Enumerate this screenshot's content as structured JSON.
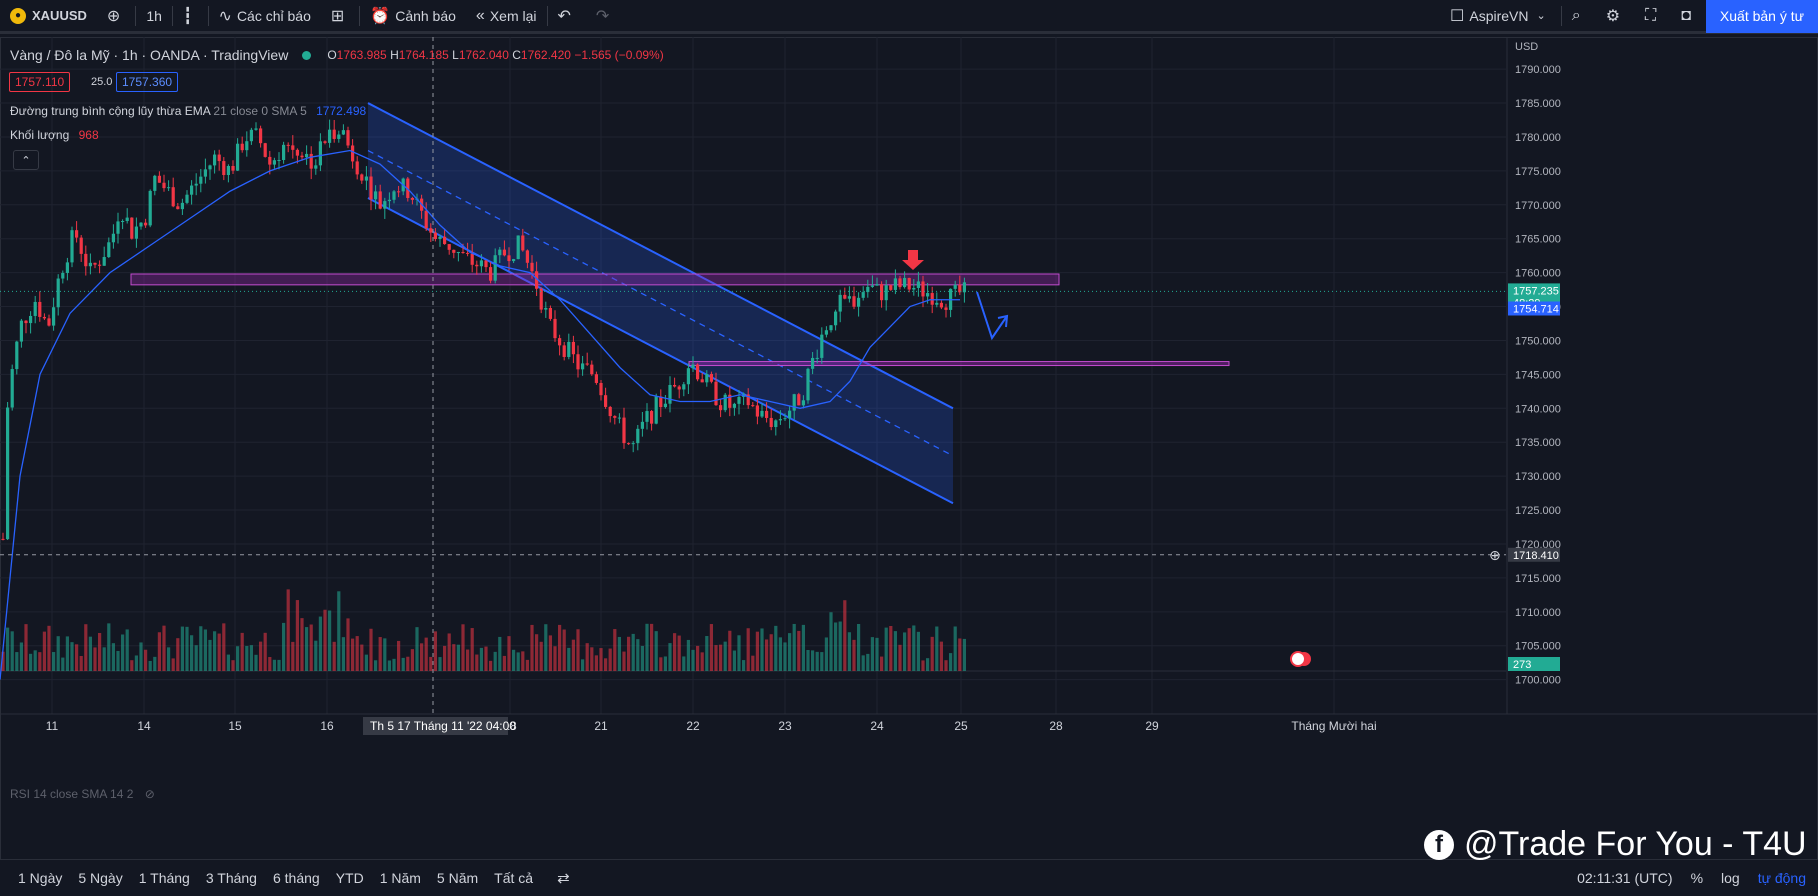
{
  "toolbar": {
    "symbol": "XAUUSD",
    "interval": "1h",
    "indicators_label": "Các chỉ báo",
    "alert_label": "Cảnh báo",
    "replay_label": "Xem lại",
    "layout_name": "AspireVN",
    "publish_label": "Xuất bản ý tư"
  },
  "legend": {
    "title": "Vàng / Đô la Mỹ · 1h · OANDA · TradingView",
    "o_label": "O",
    "o": "1763.985",
    "h_label": "H",
    "h": "1764.185",
    "l_label": "L",
    "l": "1762.040",
    "c_label": "C",
    "c": "1762.420",
    "change": "−1.565 (−0.09%)",
    "bid": "1757.110",
    "spread": "25.0",
    "ask": "1757.360"
  },
  "indicators": {
    "ema_name": "Đường trung bình cộng lũy thừa EMA",
    "ema_params": "21 close 0 SMA 5",
    "ema_value": "1772.498",
    "volume_name": "Khối lượng",
    "volume_value": "968",
    "rsi_label": "RSI 14 close SMA 14 2"
  },
  "price_scale": {
    "currency": "USD",
    "ticks": [
      "1790.000",
      "1785.000",
      "1780.000",
      "1775.000",
      "1770.000",
      "1765.000",
      "1760.000",
      "1755.000",
      "1750.000",
      "1745.000",
      "1740.000",
      "1735.000",
      "1730.000",
      "1725.000",
      "1720.000",
      "1715.000",
      "1710.000",
      "1705.000",
      "1700.000"
    ],
    "last_price": "1757.235",
    "countdown": "48:29",
    "ema_tag": "1754.714",
    "crosshair_price": "1718.410",
    "volume_tag": "273"
  },
  "time_scale": {
    "labels": [
      "11",
      "14",
      "15",
      "16",
      "18",
      "21",
      "22",
      "23",
      "24",
      "25",
      "28",
      "29",
      "Tháng Mười hai"
    ],
    "crosshair_label": "Th 5 17 Tháng 11 '22",
    "crosshair_time": "04:00"
  },
  "bottom": {
    "ranges": [
      "1 Ngày",
      "5 Ngày",
      "1 Tháng",
      "3 Tháng",
      "6 tháng",
      "YTD",
      "1 Năm",
      "5 Năm",
      "Tất cả"
    ],
    "clock": "02:11:31 (UTC)",
    "percent": "%",
    "log": "log",
    "auto": "tự động"
  },
  "watermark": "@Trade For You - T4U",
  "colors": {
    "up": "#22ab94",
    "down": "#f23645",
    "channel": "#2962ff",
    "zone": "#9c27b0",
    "ema": "#2962ff",
    "background": "#131722"
  },
  "chart_data": {
    "type": "candlestick",
    "symbol": "XAUUSD",
    "interval": "1h",
    "ylim": [
      1697,
      1794
    ],
    "close_path": [
      [
        0,
        1708
      ],
      [
        8,
        1742
      ],
      [
        20,
        1752
      ],
      [
        35,
        1756
      ],
      [
        48,
        1752
      ],
      [
        60,
        1760
      ],
      [
        75,
        1766
      ],
      [
        90,
        1760
      ],
      [
        100,
        1762
      ],
      [
        112,
        1765
      ],
      [
        120,
        1770
      ],
      [
        132,
        1766
      ],
      [
        145,
        1768
      ],
      [
        155,
        1774
      ],
      [
        168,
        1772
      ],
      [
        180,
        1770
      ],
      [
        200,
        1774
      ],
      [
        215,
        1777
      ],
      [
        230,
        1775
      ],
      [
        245,
        1780
      ],
      [
        258,
        1780
      ],
      [
        270,
        1776
      ],
      [
        285,
        1779
      ],
      [
        300,
        1778
      ],
      [
        315,
        1776
      ],
      [
        322,
        1779
      ],
      [
        340,
        1782
      ],
      [
        350,
        1778
      ],
      [
        365,
        1774
      ],
      [
        380,
        1770
      ],
      [
        395,
        1773
      ],
      [
        410,
        1772
      ],
      [
        420,
        1769
      ],
      [
        435,
        1765
      ],
      [
        450,
        1764
      ],
      [
        465,
        1762
      ],
      [
        480,
        1761
      ],
      [
        490,
        1760
      ],
      [
        505,
        1763
      ],
      [
        520,
        1764
      ],
      [
        535,
        1759
      ],
      [
        550,
        1752
      ],
      [
        565,
        1749
      ],
      [
        580,
        1746
      ],
      [
        595,
        1745
      ],
      [
        610,
        1740
      ],
      [
        620,
        1737
      ],
      [
        632,
        1734
      ],
      [
        645,
        1738
      ],
      [
        655,
        1740
      ],
      [
        668,
        1742
      ],
      [
        680,
        1744
      ],
      [
        690,
        1747
      ],
      [
        705,
        1744
      ],
      [
        720,
        1741
      ],
      [
        735,
        1740
      ],
      [
        748,
        1741
      ],
      [
        760,
        1739
      ],
      [
        775,
        1738
      ],
      [
        790,
        1740
      ],
      [
        802,
        1742
      ],
      [
        810,
        1746
      ],
      [
        825,
        1752
      ],
      [
        838,
        1755
      ],
      [
        852,
        1756
      ],
      [
        868,
        1758
      ],
      [
        880,
        1757
      ],
      [
        896,
        1758
      ],
      [
        910,
        1758
      ],
      [
        930,
        1757
      ],
      [
        945,
        1756
      ],
      [
        960,
        1757
      ]
    ],
    "ema_path": [
      [
        0,
        1700
      ],
      [
        20,
        1730
      ],
      [
        40,
        1745
      ],
      [
        70,
        1754
      ],
      [
        110,
        1760
      ],
      [
        150,
        1764
      ],
      [
        190,
        1768
      ],
      [
        230,
        1772
      ],
      [
        270,
        1775
      ],
      [
        310,
        1777
      ],
      [
        350,
        1778
      ],
      [
        380,
        1776
      ],
      [
        410,
        1772
      ],
      [
        440,
        1767
      ],
      [
        470,
        1763
      ],
      [
        500,
        1761
      ],
      [
        530,
        1760
      ],
      [
        560,
        1756
      ],
      [
        590,
        1751
      ],
      [
        620,
        1746
      ],
      [
        650,
        1742
      ],
      [
        680,
        1741
      ],
      [
        710,
        1741
      ],
      [
        740,
        1742
      ],
      [
        770,
        1741
      ],
      [
        800,
        1740
      ],
      [
        830,
        1741
      ],
      [
        850,
        1744
      ],
      [
        870,
        1749
      ],
      [
        890,
        1752
      ],
      [
        910,
        1755
      ],
      [
        930,
        1756
      ],
      [
        960,
        1756
      ]
    ],
    "channel": {
      "upper": [
        [
          368,
          1785
        ],
        [
          953,
          1740
        ]
      ],
      "lower": [
        [
          368,
          1771
        ],
        [
          953,
          1726
        ]
      ],
      "mid": [
        [
          368,
          1778
        ],
        [
          953,
          1733
        ]
      ]
    },
    "resistance_zone": [
      1758.2,
      1759.8
    ],
    "support_line": 1746.6,
    "last_price": 1757.235,
    "crosshair_price": 1718.41
  }
}
